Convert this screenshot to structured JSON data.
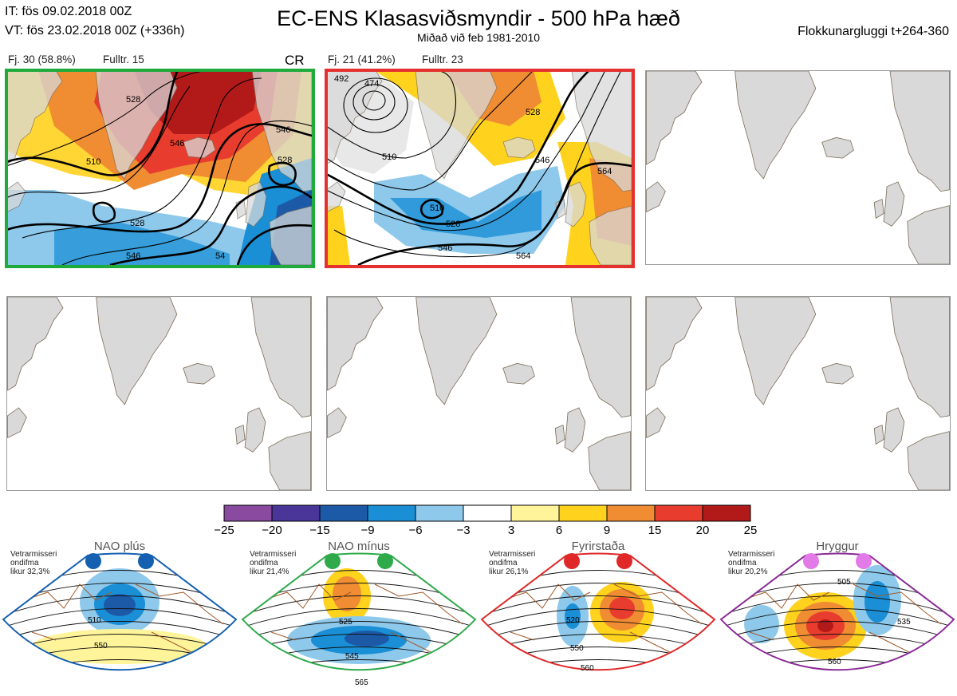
{
  "header": {
    "it_line": "IT: fös 09.02.2018 00Z",
    "vt_line": "VT: fös 23.02.2018 00Z  (+336h)",
    "title": "EC-ENS Klasasviðsmyndir - 500 hPa hæð",
    "subtitle": "Miðað við feb 1981-2010",
    "window": "Flokkunargluggi t+264-360"
  },
  "panels": [
    {
      "id": "cluster-1",
      "label_a": "Fj. 30 (58.8%)",
      "label_b": "Fulltr. 15",
      "tag": "CR",
      "frame_color": "#1faa3c",
      "contour_labels": [
        "528",
        "546",
        "510",
        "528",
        "546",
        "528",
        "546",
        "54"
      ]
    },
    {
      "id": "cluster-2",
      "label_a": "Fj. 21 (41.2%)",
      "label_b": "Fulltr. 23",
      "tag": "",
      "frame_color": "#e53030",
      "contour_labels": [
        "474",
        "492",
        "510",
        "528",
        "510",
        "528",
        "546",
        "564",
        "546",
        "564"
      ]
    },
    {
      "id": "empty-3",
      "label_a": "",
      "label_b": "",
      "tag": "",
      "frame_color": ""
    },
    {
      "id": "empty-4",
      "label_a": "",
      "label_b": "",
      "tag": "",
      "frame_color": ""
    },
    {
      "id": "empty-5",
      "label_a": "",
      "label_b": "",
      "tag": "",
      "frame_color": ""
    },
    {
      "id": "empty-6",
      "label_a": "",
      "label_b": "",
      "tag": "",
      "frame_color": ""
    }
  ],
  "colorbar": {
    "ticks": [
      "−25",
      "−20",
      "−15",
      "−9",
      "−6",
      "−3",
      "3",
      "6",
      "9",
      "15",
      "20",
      "25"
    ],
    "colors": [
      "#8a4aa0",
      "#4a3598",
      "#1c5aa8",
      "#1a8fd6",
      "#8ec9ec",
      "#ffffff",
      "#fff49a",
      "#ffd21e",
      "#f08c32",
      "#e83d2e",
      "#b21a1a"
    ]
  },
  "regimes": [
    {
      "name": "NAO plús",
      "note": "Vetrarmisseri\nondifma\nlikur 32,3%",
      "color": "#1560b0",
      "dot_color": "#1560b0",
      "labels": [
        "510",
        "550"
      ]
    },
    {
      "name": "NAO mínus",
      "note": "Vetrarmisseri\nondifma\nlikur 21,4%",
      "color": "#2eaa4a",
      "dot_color": "#2eaa4a",
      "labels": [
        "525",
        "545",
        "565"
      ]
    },
    {
      "name": "Fyrirstaða",
      "note": "Vetrarmisseri\nondifma\nlikur 26,1%",
      "color": "#e02828",
      "dot_color": "#e02828",
      "labels": [
        "520",
        "550",
        "560"
      ]
    },
    {
      "name": "Hryggur",
      "note": "Vetrarmisseri\nondifma\nlikur 20,2%",
      "color": "#8a2a96",
      "dot_color": "#e27ae8",
      "labels": [
        "505",
        "535",
        "560"
      ]
    }
  ]
}
